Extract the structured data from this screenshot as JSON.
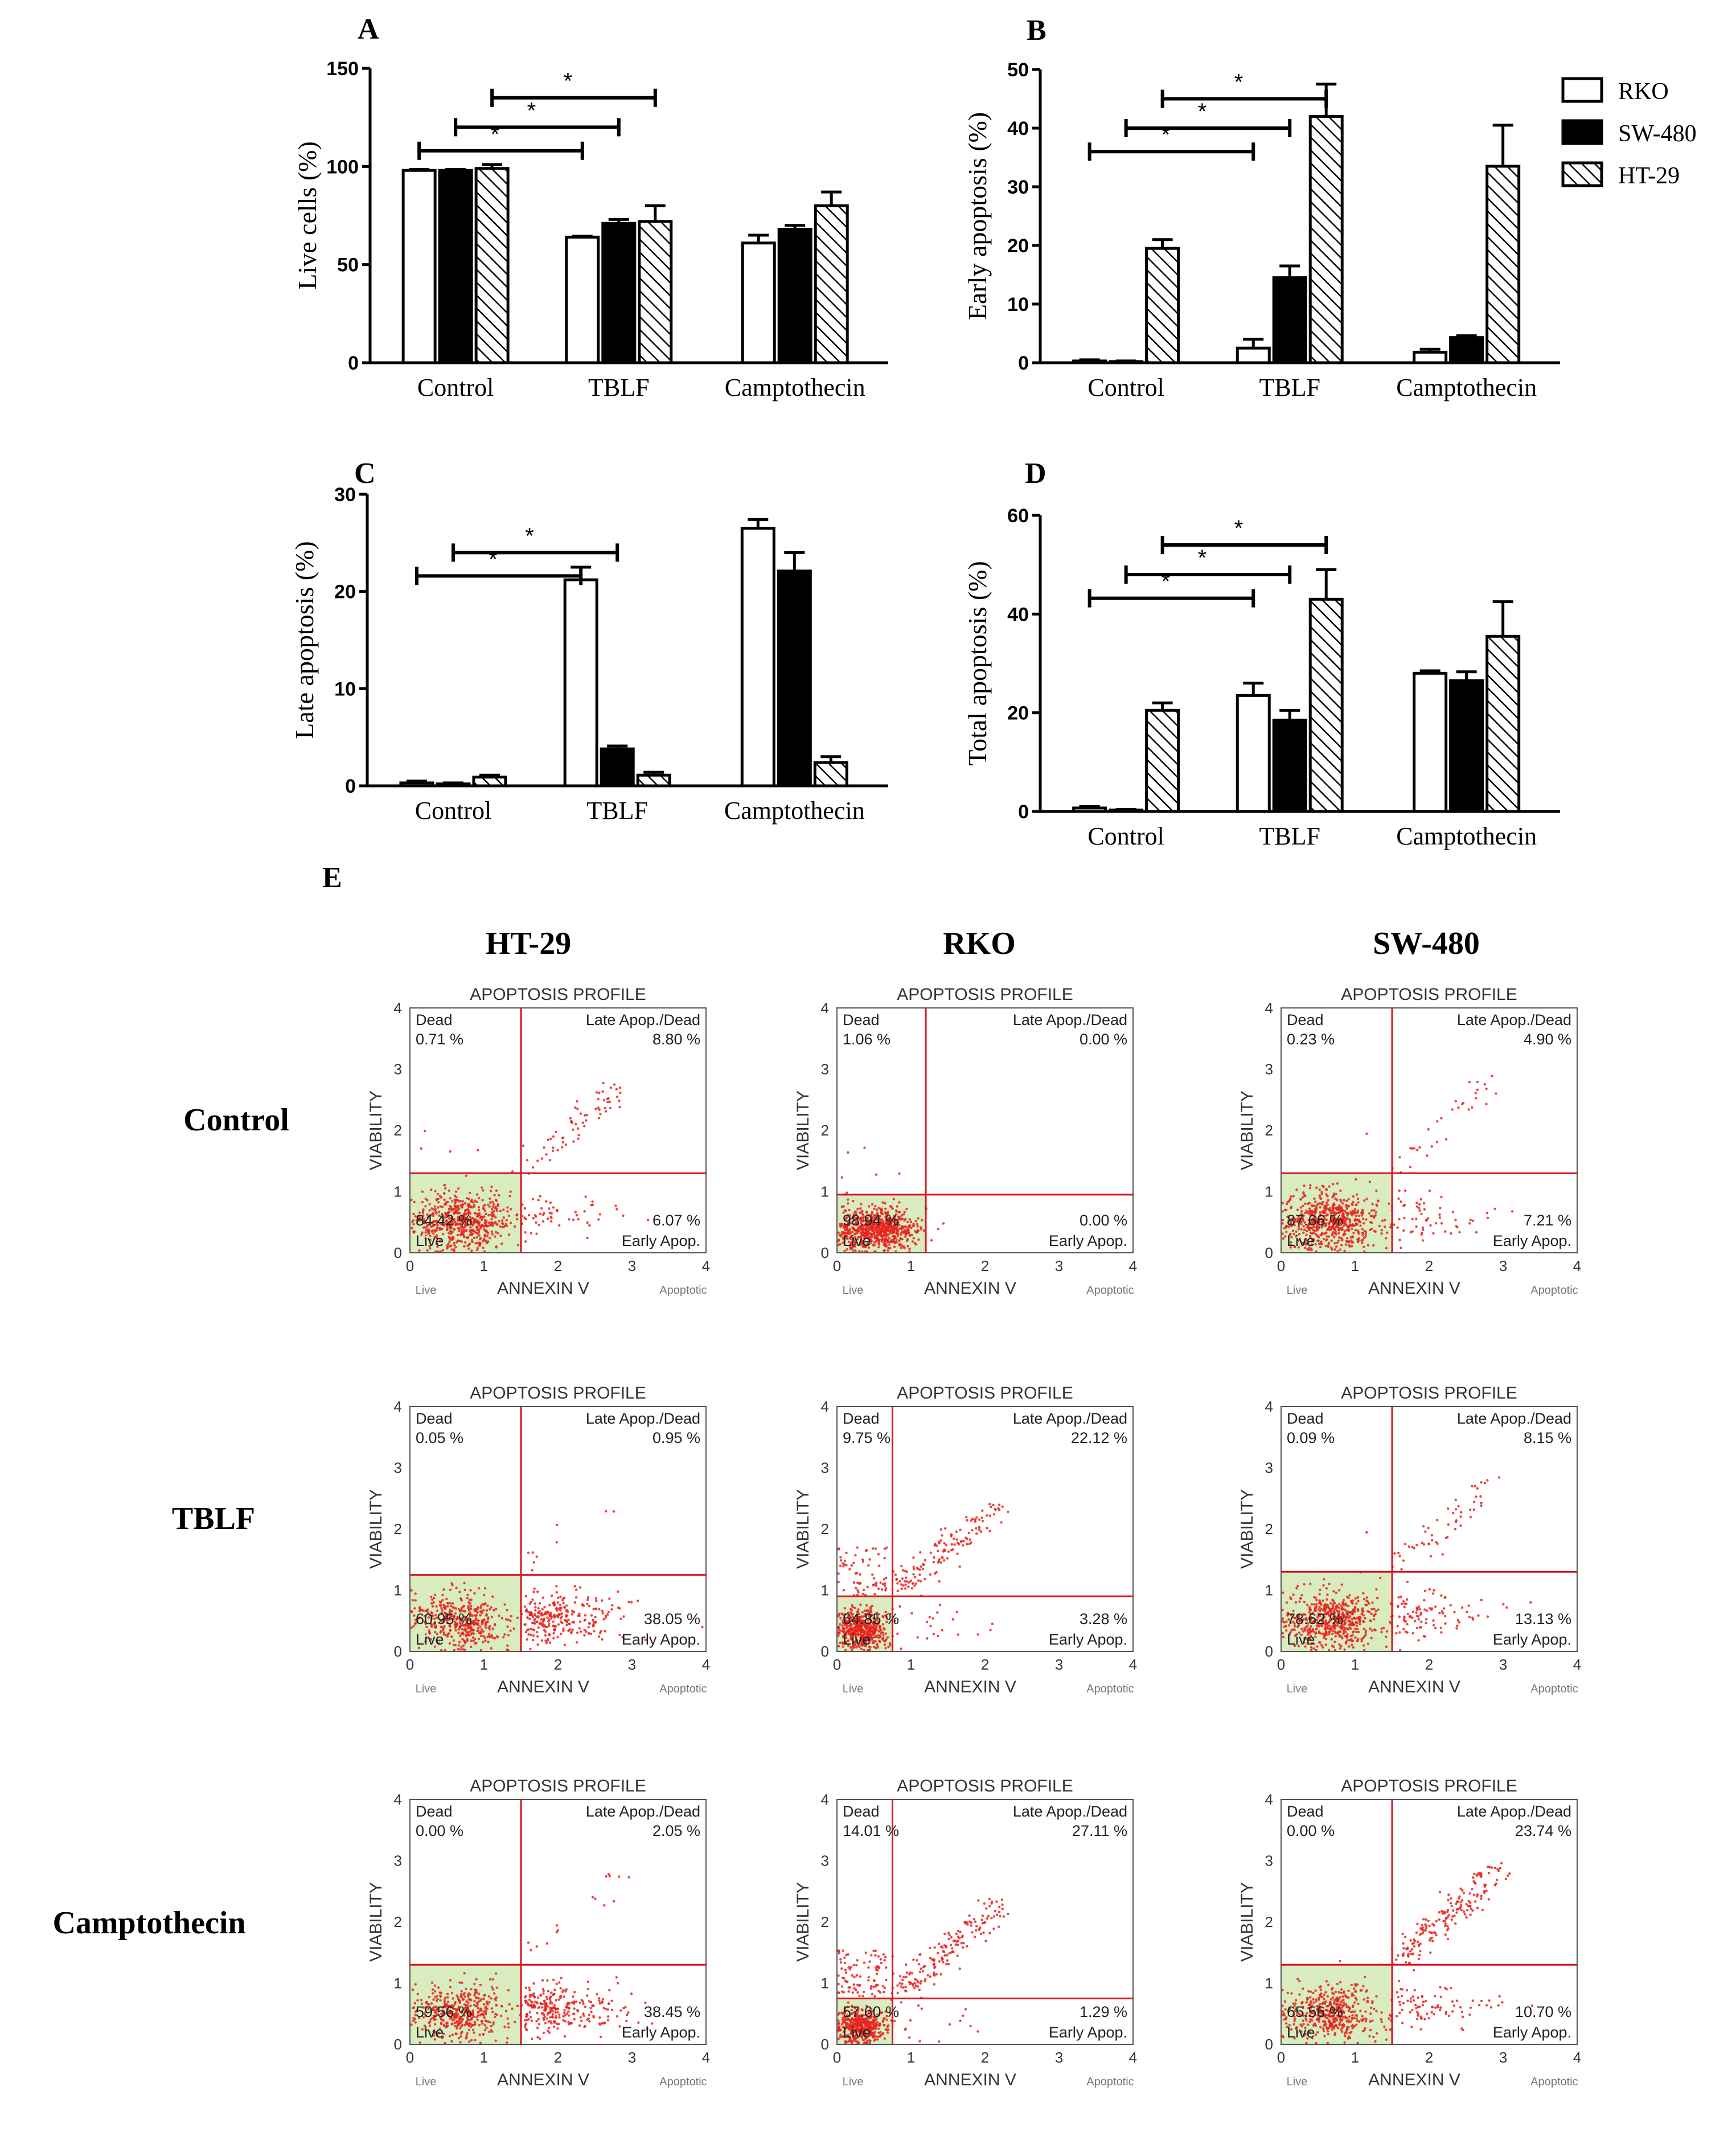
{
  "colors": {
    "rko_fill": "#ffffff",
    "sw480_fill": "#000000",
    "ht29_fill": "hatched",
    "flow_point": "#e8231e",
    "flow_gate": "#d8121f",
    "live_quadrant": "#d9ecbf"
  },
  "legend": {
    "items": [
      {
        "label": "RKO",
        "fill": "white"
      },
      {
        "label": "SW-480",
        "fill": "black"
      },
      {
        "label": "HT-29",
        "fill": "hatched"
      }
    ]
  },
  "chart_data": [
    {
      "panel": "A",
      "type": "bar",
      "ylabel": "Live cells (%)",
      "ylim": [
        0,
        150
      ],
      "yticks": [
        0,
        50,
        100,
        150
      ],
      "categories": [
        "Control",
        "TBLF",
        "Camptothecin"
      ],
      "series": [
        {
          "name": "RKO",
          "values": [
            98,
            64,
            61
          ],
          "errors": [
            0.5,
            0.5,
            4
          ]
        },
        {
          "name": "SW-480",
          "values": [
            98,
            71,
            68
          ],
          "errors": [
            0.5,
            2,
            2
          ]
        },
        {
          "name": "HT-29",
          "values": [
            99,
            72,
            80
          ],
          "errors": [
            2,
            8,
            7
          ]
        }
      ],
      "significance": [
        {
          "from": [
            0,
            0
          ],
          "to": [
            1,
            0
          ],
          "label": "*"
        },
        {
          "from": [
            0,
            1
          ],
          "to": [
            1,
            1
          ],
          "label": "*"
        },
        {
          "from": [
            0,
            2
          ],
          "to": [
            1,
            2
          ],
          "label": "*"
        }
      ]
    },
    {
      "panel": "B",
      "type": "bar",
      "ylabel": "Early apoptosis (%)",
      "ylim": [
        0,
        50
      ],
      "yticks": [
        0,
        10,
        20,
        30,
        40,
        50
      ],
      "categories": [
        "Control",
        "TBLF",
        "Camptothecin"
      ],
      "series": [
        {
          "name": "RKO",
          "values": [
            0.3,
            2.5,
            1.8
          ],
          "errors": [
            0.2,
            1.5,
            0.5
          ]
        },
        {
          "name": "SW-480",
          "values": [
            0.2,
            14.5,
            4.3
          ],
          "errors": [
            0.1,
            2,
            0.3
          ]
        },
        {
          "name": "HT-29",
          "values": [
            19.5,
            42,
            33.5
          ],
          "errors": [
            1.5,
            5.5,
            7
          ]
        }
      ],
      "significance": [
        {
          "from": [
            0,
            0
          ],
          "to": [
            1,
            0
          ],
          "label": "*"
        },
        {
          "from": [
            0,
            1
          ],
          "to": [
            1,
            1
          ],
          "label": "*"
        },
        {
          "from": [
            0,
            2
          ],
          "to": [
            1,
            2
          ],
          "label": "*"
        }
      ]
    },
    {
      "panel": "C",
      "type": "bar",
      "ylabel": "Late apoptosis (%)",
      "ylim": [
        0,
        30
      ],
      "yticks": [
        0,
        10,
        20,
        30
      ],
      "categories": [
        "Control",
        "TBLF",
        "Camptothecin"
      ],
      "series": [
        {
          "name": "RKO",
          "values": [
            0.3,
            21.2,
            26.5
          ],
          "errors": [
            0.2,
            1.3,
            0.9
          ]
        },
        {
          "name": "SW-480",
          "values": [
            0.2,
            3.8,
            22.1
          ],
          "errors": [
            0.1,
            0.3,
            1.9
          ]
        },
        {
          "name": "HT-29",
          "values": [
            0.9,
            1.1,
            2.4
          ],
          "errors": [
            0.2,
            0.3,
            0.6
          ]
        }
      ],
      "significance": [
        {
          "from": [
            0,
            0
          ],
          "to": [
            1,
            0
          ],
          "label": "*"
        },
        {
          "from": [
            0,
            1
          ],
          "to": [
            1,
            1
          ],
          "label": "*"
        }
      ]
    },
    {
      "panel": "D",
      "type": "bar",
      "ylabel": "Total apoptosis (%)",
      "ylim": [
        0,
        60
      ],
      "yticks": [
        0,
        20,
        40,
        60
      ],
      "categories": [
        "Control",
        "TBLF",
        "Camptothecin"
      ],
      "series": [
        {
          "name": "RKO",
          "values": [
            0.7,
            23.5,
            28
          ],
          "errors": [
            0.3,
            2.5,
            0.5
          ]
        },
        {
          "name": "SW-480",
          "values": [
            0.3,
            18.5,
            26.5
          ],
          "errors": [
            0.1,
            2,
            1.8
          ]
        },
        {
          "name": "HT-29",
          "values": [
            20.5,
            43,
            35.5
          ],
          "errors": [
            1.5,
            6,
            7
          ]
        }
      ],
      "significance": [
        {
          "from": [
            0,
            0
          ],
          "to": [
            1,
            0
          ],
          "label": "*"
        },
        {
          "from": [
            0,
            1
          ],
          "to": [
            1,
            1
          ],
          "label": "*"
        },
        {
          "from": [
            0,
            2
          ],
          "to": [
            1,
            2
          ],
          "label": "*"
        }
      ]
    }
  ],
  "panel_e": {
    "letter": "E",
    "columns": [
      "HT-29",
      "RKO",
      "SW-480"
    ],
    "rows": [
      "Control",
      "TBLF",
      "Camptothecin"
    ],
    "plot_title": "APOPTOSIS PROFILE",
    "x_label": "ANNEXIN V",
    "y_label": "VIABILITY",
    "x_low": "Live",
    "x_high": "Apoptotic",
    "axis_ticks": [
      "0",
      "1",
      "2",
      "3",
      "4"
    ],
    "quadrant_labels": {
      "dead": "Dead",
      "late": "Late Apop./Dead",
      "early": "Early Apop.",
      "live": "Live"
    },
    "plots": [
      [
        {
          "dead": "0.71 %",
          "late": "8.80 %",
          "early": "6.07 %",
          "live": "84.42 %",
          "gate_x": 1.5,
          "gate_y": 1.3
        },
        {
          "dead": "1.06 %",
          "late": "0.00 %",
          "early": "0.00 %",
          "live": "98.94 %",
          "gate_x": 1.2,
          "gate_y": 0.95
        },
        {
          "dead": "0.23 %",
          "late": "4.90 %",
          "early": "7.21 %",
          "live": "87.66 %",
          "gate_x": 1.5,
          "gate_y": 1.3
        }
      ],
      [
        {
          "dead": "0.05 %",
          "late": "0.95 %",
          "early": "38.05 %",
          "live": "60.95 %",
          "gate_x": 1.5,
          "gate_y": 1.25
        },
        {
          "dead": "9.75 %",
          "late": "22.12 %",
          "early": "3.28 %",
          "live": "64.85 %",
          "gate_x": 0.75,
          "gate_y": 0.9
        },
        {
          "dead": "0.09 %",
          "late": "8.15 %",
          "early": "13.13 %",
          "live": "78.62 %",
          "gate_x": 1.5,
          "gate_y": 1.3
        }
      ],
      [
        {
          "dead": "0.00 %",
          "late": "2.05 %",
          "early": "38.45 %",
          "live": "59.56 %",
          "gate_x": 1.5,
          "gate_y": 1.3
        },
        {
          "dead": "14.01 %",
          "late": "27.11 %",
          "early": "1.29 %",
          "live": "57.60 %",
          "gate_x": 0.75,
          "gate_y": 0.75
        },
        {
          "dead": "0.00 %",
          "late": "23.74 %",
          "early": "10.70 %",
          "live": "65.56 %",
          "gate_x": 1.5,
          "gate_y": 1.3
        }
      ]
    ]
  }
}
